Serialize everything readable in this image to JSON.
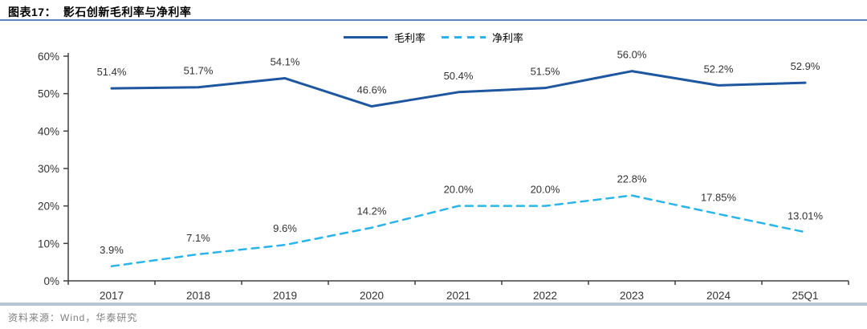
{
  "header": {
    "title": "图表17：  影石创新毛利率与净利率"
  },
  "chart_data": {
    "type": "line",
    "title": "影石创新毛利率与净利率",
    "categories": [
      "2017",
      "2018",
      "2019",
      "2020",
      "2021",
      "2022",
      "2023",
      "2024",
      "25Q1"
    ],
    "series": [
      {
        "name": "毛利率",
        "color": "#1e56a0",
        "dash": null,
        "values": [
          51.4,
          51.7,
          54.1,
          46.6,
          50.4,
          51.5,
          56.0,
          52.2,
          52.9
        ],
        "labels": [
          "51.4%",
          "51.7%",
          "54.1%",
          "46.6%",
          "50.4%",
          "51.5%",
          "56.0%",
          "52.2%",
          "52.9%"
        ]
      },
      {
        "name": "净利率",
        "color": "#29b4ea",
        "dash": "9 7",
        "values": [
          3.9,
          7.1,
          9.6,
          14.2,
          20.0,
          20.0,
          22.8,
          17.85,
          13.01
        ],
        "labels": [
          "3.9%",
          "7.1%",
          "9.6%",
          "14.2%",
          "20.0%",
          "20.0%",
          "22.8%",
          "17.85%",
          "13.01%"
        ]
      }
    ],
    "ylim": [
      0,
      60
    ],
    "yticks": [
      0,
      10,
      20,
      30,
      40,
      50,
      60
    ],
    "ytick_labels": [
      "0%",
      "10%",
      "20%",
      "30%",
      "40%",
      "50%",
      "60%"
    ],
    "xlabel": "",
    "ylabel": "",
    "grid": false,
    "legend_position": "top-center"
  },
  "footer": {
    "source": "资料来源：Wind，华泰研究"
  },
  "colors": {
    "accent_rule": "#5b83bd",
    "bottom_bar": "#b6c5d4",
    "axis": "#404040",
    "tick_label": "#333333",
    "data_label": "#333333",
    "source_text": "#7f7f7f"
  }
}
